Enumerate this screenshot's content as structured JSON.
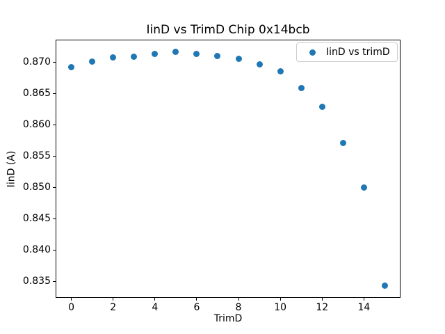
{
  "chart_data": {
    "type": "scatter",
    "title": "IinD vs TrimD Chip 0x14bcb",
    "xlabel": "TrimD",
    "ylabel": "IinD (A)",
    "grid": false,
    "marker_color": "#1f77b4",
    "spine_color": "#000000",
    "xlim": [
      -0.75,
      15.75
    ],
    "ylim": [
      0.8324,
      0.8735
    ],
    "x": [
      0,
      1,
      2,
      3,
      4,
      5,
      6,
      7,
      8,
      9,
      10,
      11,
      12,
      13,
      14,
      15
    ],
    "series": [
      {
        "name": "IinD vs trimD",
        "values": [
          0.8692,
          0.8701,
          0.8707,
          0.8708,
          0.8713,
          0.8716,
          0.8713,
          0.8709,
          0.8705,
          0.8696,
          0.8685,
          0.8658,
          0.8628,
          0.8571,
          0.85,
          0.8343
        ]
      }
    ],
    "xticks": {
      "values": [
        0,
        2,
        4,
        6,
        8,
        10,
        12,
        14
      ],
      "labels": [
        "0",
        "2",
        "4",
        "6",
        "8",
        "10",
        "12",
        "14"
      ]
    },
    "yticks": {
      "values": [
        0.835,
        0.84,
        0.845,
        0.85,
        0.855,
        0.86,
        0.865,
        0.87
      ],
      "labels": [
        "0.835",
        "0.840",
        "0.845",
        "0.850",
        "0.855",
        "0.860",
        "0.865",
        "0.870"
      ]
    },
    "legend": {
      "position": "upper-right",
      "entries": [
        {
          "label": "IinD vs trimD",
          "marker_color": "#1f77b4"
        }
      ]
    }
  }
}
